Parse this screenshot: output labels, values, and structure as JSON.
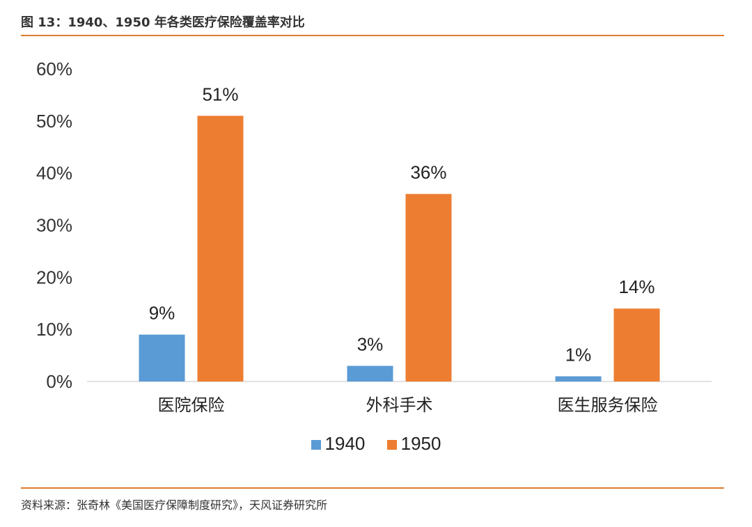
{
  "header": {
    "title": "图 13：1940、1950 年各类医疗保险覆盖率对比"
  },
  "footer": {
    "source": "资料来源：张奇林《美国医疗保障制度研究》，天风证券研究所"
  },
  "chart_data": {
    "type": "bar",
    "title": "",
    "xlabel": "",
    "ylabel": "",
    "categories": [
      "医院保险",
      "外科手术",
      "医生服务保险"
    ],
    "series": [
      {
        "name": "1940",
        "color": "#5b9bd5",
        "values": [
          9,
          3,
          1
        ],
        "labels": [
          "9%",
          "3%",
          "1%"
        ]
      },
      {
        "name": "1950",
        "color": "#ed7d31",
        "values": [
          51,
          36,
          14
        ],
        "labels": [
          "51%",
          "36%",
          "14%"
        ]
      }
    ],
    "ylim": [
      0,
      60
    ],
    "yticks": [
      0,
      10,
      20,
      30,
      40,
      50,
      60
    ],
    "ytick_labels": [
      "0%",
      "10%",
      "20%",
      "30%",
      "40%",
      "50%",
      "60%"
    ],
    "legend_position": "bottom",
    "grid": false
  }
}
